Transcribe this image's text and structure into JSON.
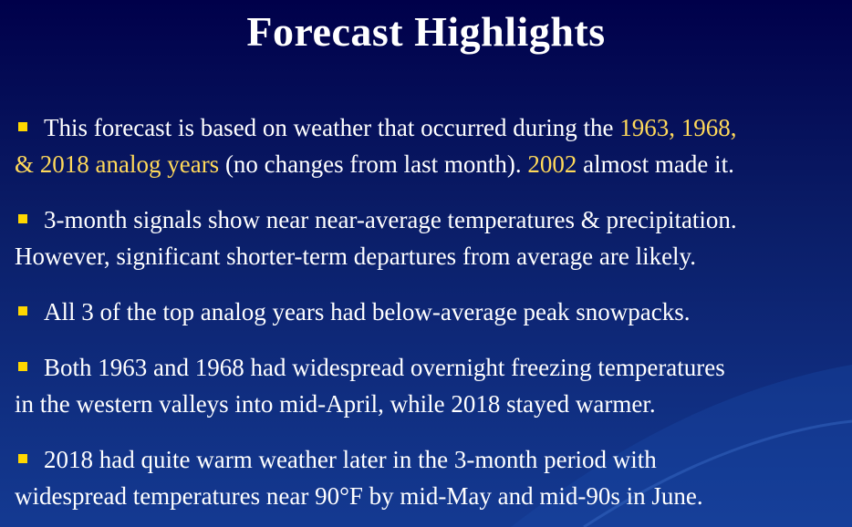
{
  "title": "Forecast Highlights",
  "colors": {
    "background_top": "#00004a",
    "background_bottom": "#143a92",
    "text": "#ffffff",
    "highlight": "#ffd95a",
    "bullet_marker": "#ffd700"
  },
  "bullets": [
    {
      "line1_a": "This forecast is based on weather that occurred during the ",
      "line1_hl": "1963, 1968,",
      "line2_hl": "& 2018 analog years",
      "line2_b": " (no changes from last month).  ",
      "line2_hl2": "2002",
      "line2_c": " almost made it."
    },
    {
      "line1": "3-month signals show near near-average temperatures & precipitation.",
      "line2": "However, significant shorter-term departures from average are likely."
    },
    {
      "line1": "All 3 of the top analog years had below-average peak snowpacks."
    },
    {
      "line1": "Both 1963 and 1968 had widespread overnight freezing temperatures",
      "line2": "in the western valleys into mid-April, while 2018 stayed warmer."
    },
    {
      "line1": "2018 had quite warm weather later in the 3-month period with",
      "line2": "widespread temperatures near 90°F by mid-May and mid-90s in June."
    }
  ]
}
